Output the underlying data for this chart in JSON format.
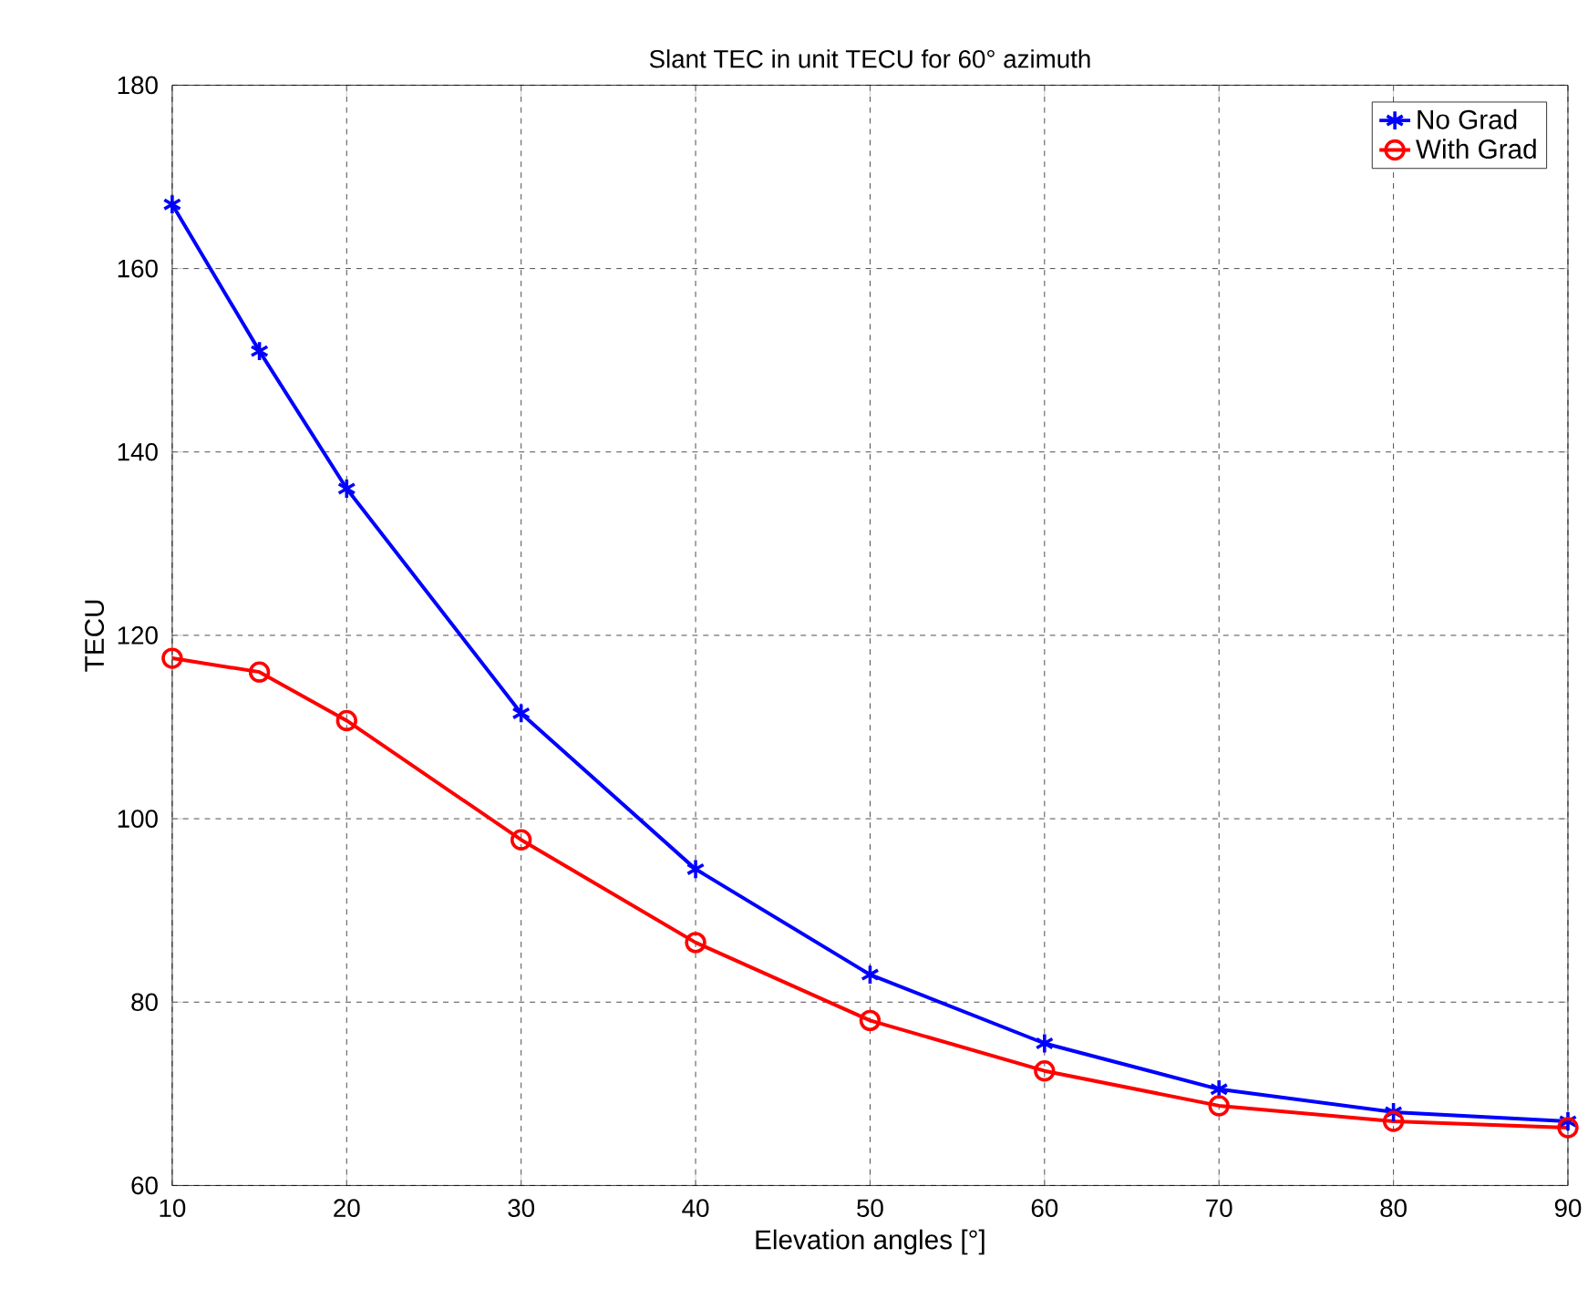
{
  "chart_data": {
    "type": "line",
    "title": "Slant TEC in unit TECU for 60° azimuth",
    "xlabel": "Elevation angles  [°]",
    "ylabel": "TECU",
    "x": [
      10,
      15,
      20,
      30,
      40,
      50,
      60,
      70,
      80,
      90
    ],
    "series": [
      {
        "name": "No Grad",
        "color": "#0000ff",
        "marker": "cross",
        "values": [
          167,
          151,
          136,
          111.5,
          94.5,
          83,
          75.5,
          70.5,
          68,
          67
        ]
      },
      {
        "name": "With Grad",
        "color": "#ff0000",
        "marker": "circle",
        "values": [
          117.5,
          116,
          110.7,
          97.7,
          86.5,
          78,
          72.5,
          68.7,
          67,
          66.3
        ]
      }
    ],
    "xlim": [
      10,
      90
    ],
    "ylim": [
      60,
      180
    ],
    "xticks": [
      10,
      20,
      30,
      40,
      50,
      60,
      70,
      80,
      90
    ],
    "yticks": [
      60,
      80,
      100,
      120,
      140,
      160,
      180
    ],
    "grid": true,
    "legend": "top right",
    "line_style": "solid"
  }
}
